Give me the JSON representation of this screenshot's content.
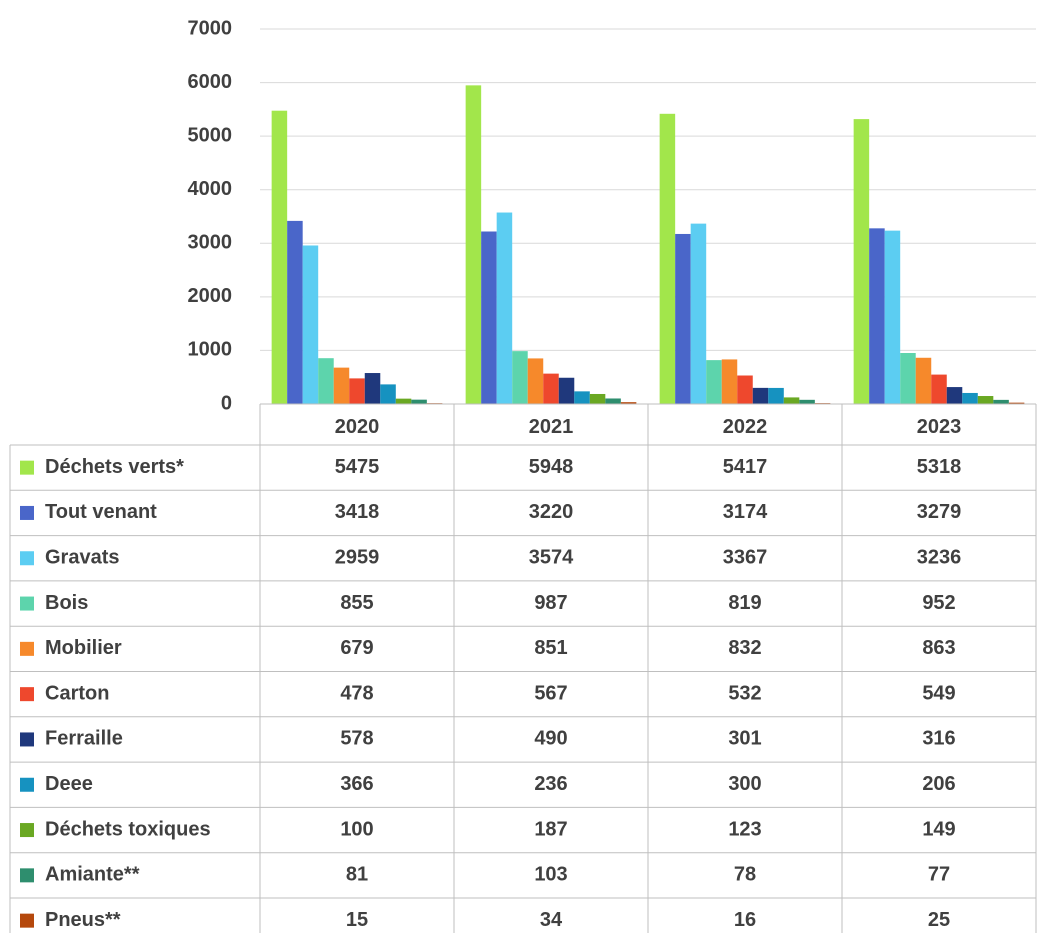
{
  "chart_data": {
    "type": "bar",
    "categories": [
      "2020",
      "2021",
      "2022",
      "2023"
    ],
    "series": [
      {
        "name": "Déchets verts*",
        "color": "#a2e64b",
        "values": [
          5475,
          5948,
          5417,
          5318
        ]
      },
      {
        "name": "Tout venant",
        "color": "#4a66c9",
        "values": [
          3418,
          3220,
          3174,
          3279
        ]
      },
      {
        "name": "Gravats",
        "color": "#5ccdf2",
        "values": [
          2959,
          3574,
          3367,
          3236
        ]
      },
      {
        "name": "Bois",
        "color": "#5dd4ac",
        "values": [
          855,
          987,
          819,
          952
        ]
      },
      {
        "name": "Mobilier",
        "color": "#f6892b",
        "values": [
          679,
          851,
          832,
          863
        ]
      },
      {
        "name": "Carton",
        "color": "#ee482d",
        "values": [
          478,
          567,
          532,
          549
        ]
      },
      {
        "name": "Ferraille",
        "color": "#1f387c",
        "values": [
          578,
          490,
          301,
          316
        ]
      },
      {
        "name": "Deee",
        "color": "#1692c0",
        "values": [
          366,
          236,
          300,
          206
        ]
      },
      {
        "name": "Déchets toxiques",
        "color": "#6aa823",
        "values": [
          100,
          187,
          123,
          149
        ]
      },
      {
        "name": "Amiante**",
        "color": "#2e8e6e",
        "values": [
          81,
          103,
          78,
          77
        ]
      },
      {
        "name": "Pneus**",
        "color": "#b5480c",
        "values": [
          15,
          34,
          16,
          25
        ]
      }
    ],
    "ylim": [
      0,
      7000
    ],
    "yticks": [
      0,
      1000,
      2000,
      3000,
      4000,
      5000,
      6000,
      7000
    ],
    "grid": true
  }
}
